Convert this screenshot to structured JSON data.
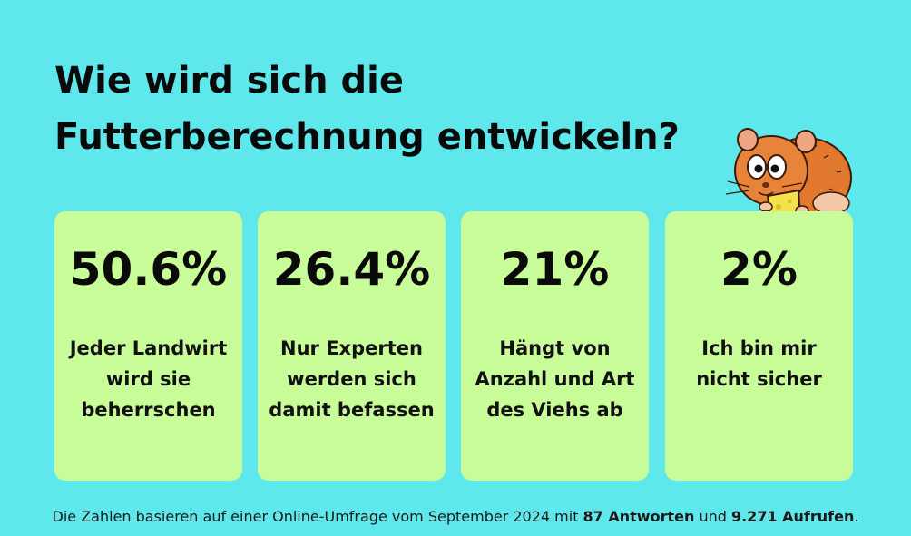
{
  "title": {
    "line1": "Wie wird sich die",
    "line2": "Futterberechnung entwickeln?"
  },
  "chart_data": {
    "type": "table",
    "title": "Wie wird sich die Futterberechnung entwickeln?",
    "unit": "%",
    "categories": [
      "Jeder Landwirt wird sie beherrschen",
      "Nur Experten werden sich damit befassen",
      "Hängt von Anzahl und Art des Viehs ab",
      "Ich bin mir nicht sicher"
    ],
    "values": [
      50.6,
      26.4,
      21,
      2
    ],
    "value_labels": [
      "50.6%",
      "26.4%",
      "21%",
      "2%"
    ]
  },
  "cards": [
    {
      "value": "50.6%",
      "label": "Jeder Landwirt wird sie beherrschen"
    },
    {
      "value": "26.4%",
      "label": "Nur Experten werden sich damit befassen"
    },
    {
      "value": "21%",
      "label": "Hängt von Anzahl und Art des Viehs ab"
    },
    {
      "value": "2%",
      "label": "Ich bin mir nicht sicher"
    }
  ],
  "footer": {
    "text_before": "Die Zahlen basieren auf einer Online-Umfrage vom September 2024 mit ",
    "answers": "87 Antworten",
    "text_middle": " und ",
    "views": "9.271 Aufrufen",
    "text_end": "."
  },
  "colors": {
    "background": "#5ee8ec",
    "card": "#c8fc98",
    "text": "#0a0a0a"
  },
  "icons": {
    "mascot": "hamster-eating-cheese-icon"
  }
}
